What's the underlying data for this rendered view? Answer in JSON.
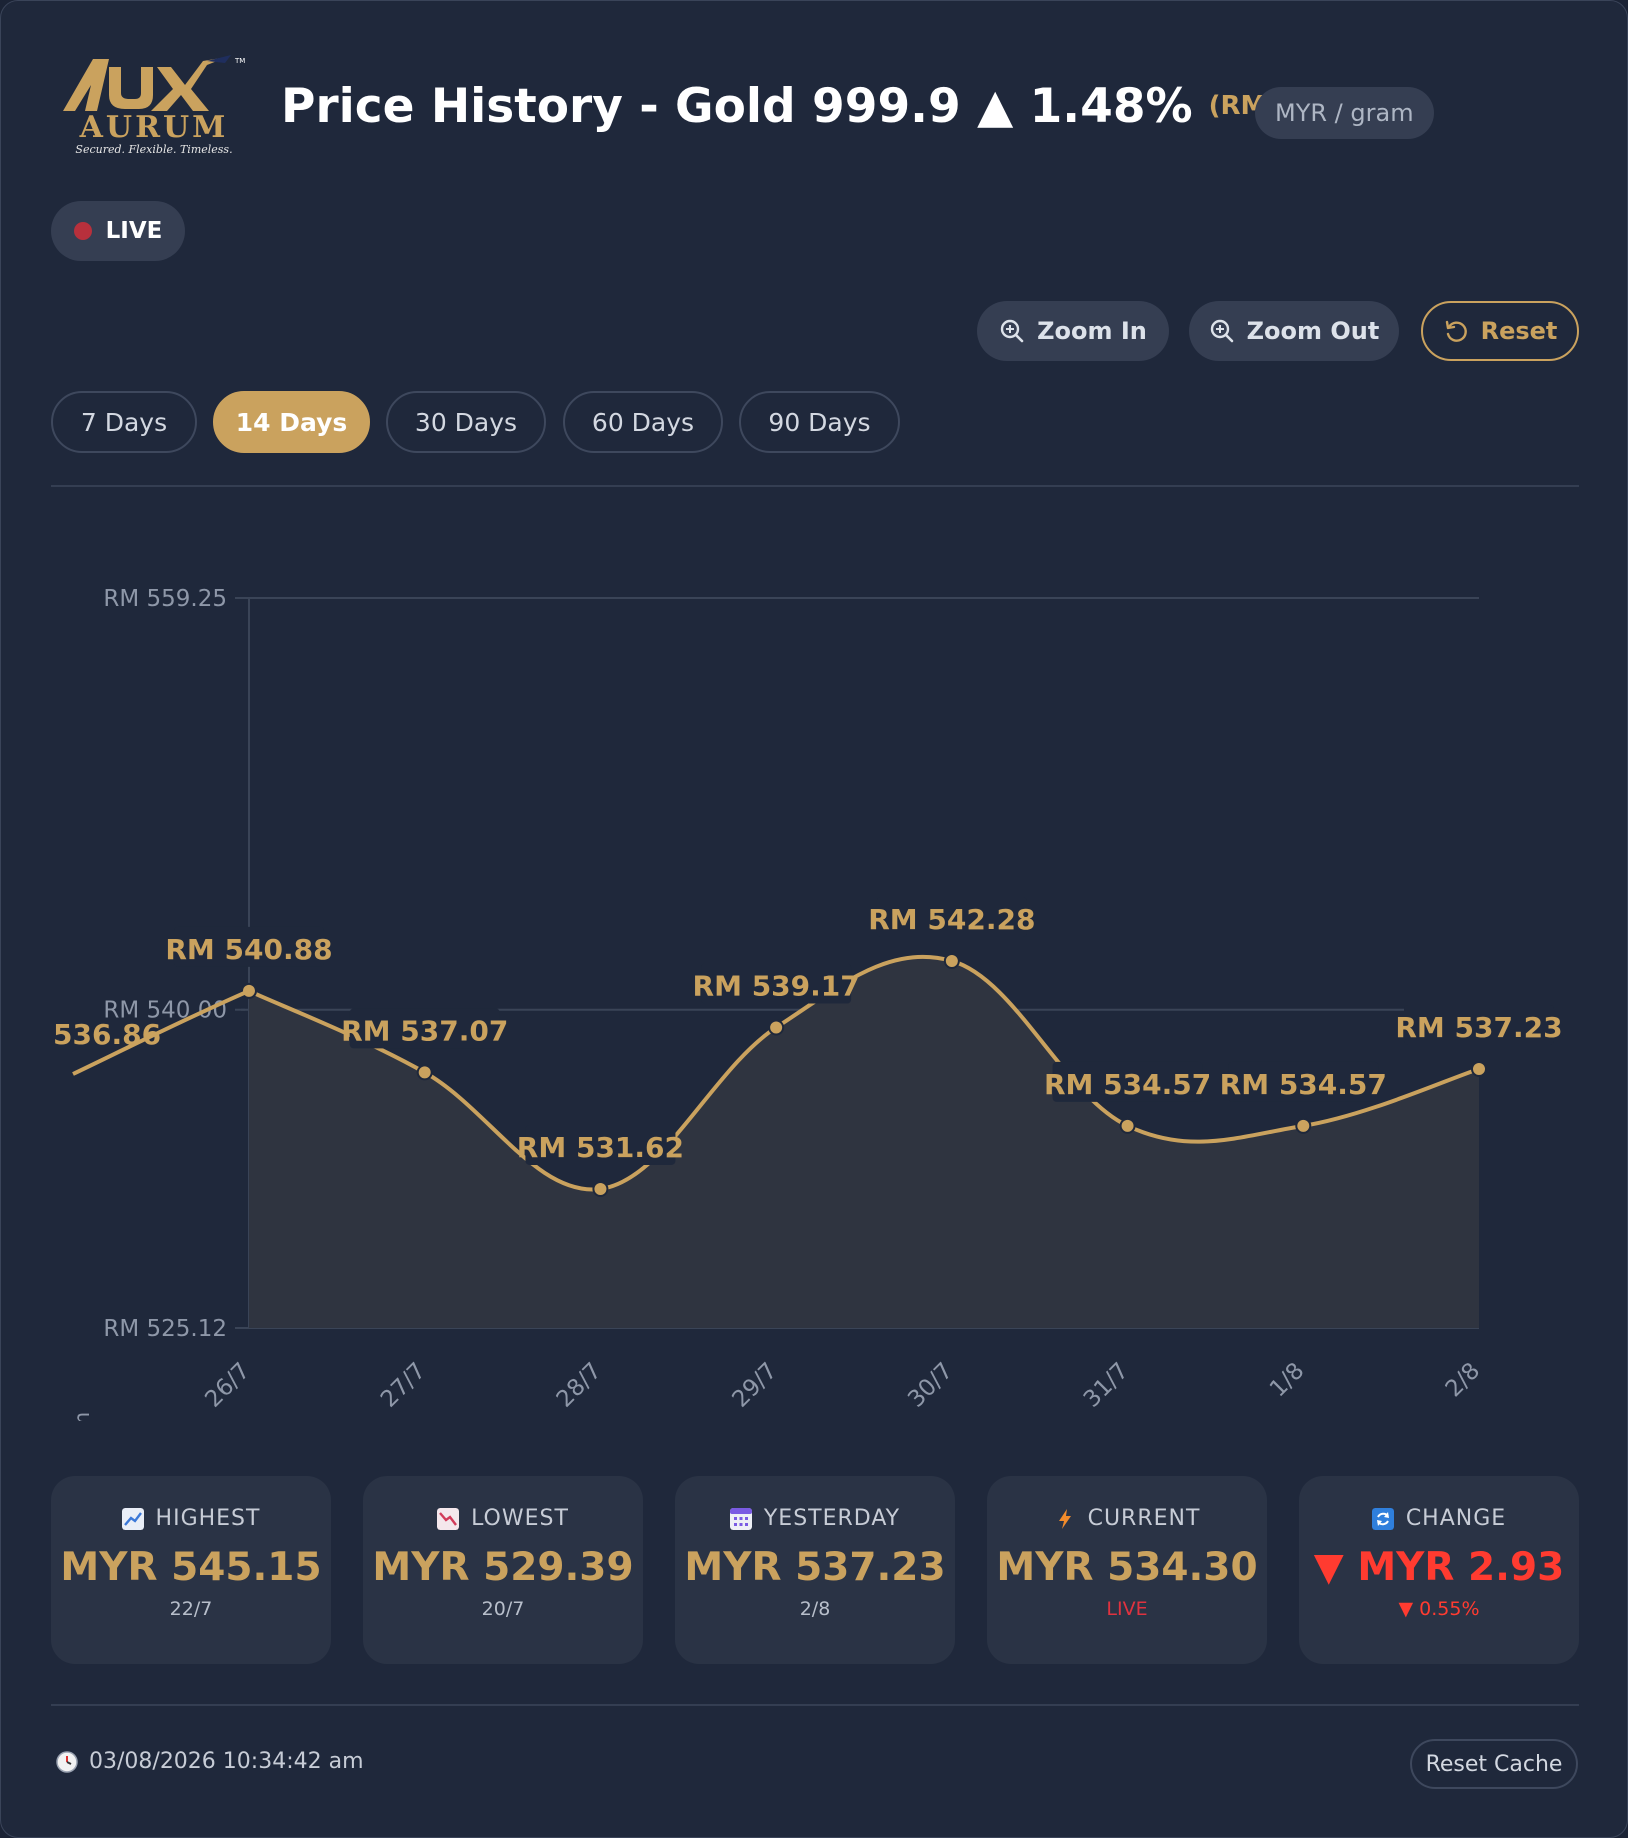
{
  "header": {
    "logo_text": "AUX",
    "logo_wordmark": "AURUM",
    "logo_tagline": "Secured. Flexible. Timeless.",
    "logo_tm": "TM",
    "title": "Price History - Gold 999.9 ▲ 1.48%",
    "title_price": "(RM 537.23)",
    "unit": "MYR / gram"
  },
  "live": {
    "label": "LIVE"
  },
  "controls": {
    "zoom_in": "Zoom In",
    "zoom_out": "Zoom Out",
    "reset": "Reset"
  },
  "tabs": [
    {
      "label": "7 Days",
      "active": false
    },
    {
      "label": "14 Days",
      "active": true
    },
    {
      "label": "30 Days",
      "active": false
    },
    {
      "label": "60 Days",
      "active": false
    },
    {
      "label": "90 Days",
      "active": false
    }
  ],
  "chart_data": {
    "type": "line",
    "x": [
      "26/7",
      "27/7",
      "28/7",
      "29/7",
      "30/7",
      "31/7",
      "1/8",
      "2/8"
    ],
    "series": [
      {
        "values": [
          540.88,
          537.07,
          531.62,
          539.17,
          542.28,
          534.57,
          534.57,
          537.23
        ],
        "labels": [
          "RM 540.88",
          "RM 537.07",
          "RM 531.62",
          "RM 539.17",
          "RM 542.28",
          "RM 534.57",
          "RM 534.57",
          "RM 537.23"
        ]
      }
    ],
    "partial_left_label": "536.86",
    "y_ticks": [
      559.25,
      540.0,
      525.12
    ],
    "y_tick_labels": [
      "RM 559.25",
      "RM 540.00",
      "RM 525.12"
    ],
    "ylim": [
      525.12,
      559.25
    ],
    "ylabel": "MYR / gram",
    "line_color": "#caa25e",
    "fill_color": "#2f3440",
    "grid": true
  },
  "stats": [
    {
      "icon": "chart-up-icon",
      "label": "HIGHEST",
      "value": "MYR 545.15",
      "sub": "22/7"
    },
    {
      "icon": "chart-down-icon",
      "label": "LOWEST",
      "value": "MYR 529.39",
      "sub": "20/7"
    },
    {
      "icon": "calendar-icon",
      "label": "YESTERDAY",
      "value": "MYR 537.23",
      "sub": "2/8"
    },
    {
      "icon": "lightning-icon",
      "label": "CURRENT",
      "value": "MYR 534.30",
      "sub": "LIVE"
    },
    {
      "icon": "refresh-icon",
      "label": "CHANGE",
      "value": "▼ MYR 2.93",
      "sub": "▼ 0.55%"
    }
  ],
  "footer": {
    "timestamp": "03/08/2026 10:34:42 am",
    "reset_cache": "Reset Cache"
  },
  "colors": {
    "gold": "#caa25e",
    "negative": "#ff3b30",
    "live_red": "#e0323f"
  }
}
